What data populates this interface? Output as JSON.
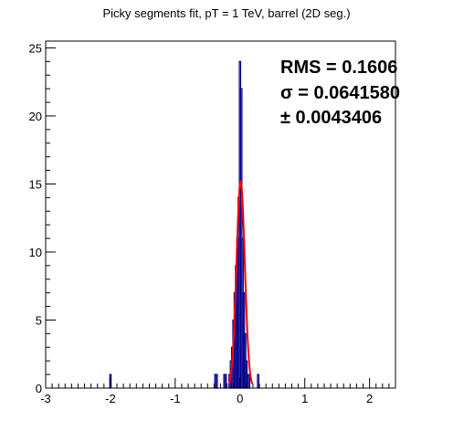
{
  "chart_data": {
    "type": "histogram",
    "title": "Picky segments fit, pT = 1 TeV, barrel (2D seg.)",
    "xlabel": "",
    "ylabel": "",
    "xlim": [
      -3,
      2.4
    ],
    "ylim": [
      0,
      25.5
    ],
    "x_major_ticks": [
      -3,
      -2,
      -1,
      0,
      1,
      2
    ],
    "x_tick_labels": [
      "-3",
      "-2",
      "-1",
      "0",
      "1",
      "2"
    ],
    "y_major_ticks": [
      0,
      5,
      10,
      15,
      20,
      25
    ],
    "y_tick_labels": [
      "0",
      "5",
      "10",
      "15",
      "20",
      "25"
    ],
    "bin_width": 0.02,
    "histogram": {
      "color": "#00008b",
      "bins": [
        {
          "x": -2.0,
          "value": 1
        },
        {
          "x": -0.38,
          "value": 1
        },
        {
          "x": -0.36,
          "value": 1
        },
        {
          "x": -0.24,
          "value": 1
        },
        {
          "x": -0.22,
          "value": 1
        },
        {
          "x": -0.16,
          "value": 1
        },
        {
          "x": -0.14,
          "value": 2
        },
        {
          "x": -0.12,
          "value": 3
        },
        {
          "x": -0.1,
          "value": 5
        },
        {
          "x": -0.08,
          "value": 7
        },
        {
          "x": -0.06,
          "value": 9
        },
        {
          "x": -0.04,
          "value": 11
        },
        {
          "x": -0.02,
          "value": 14
        },
        {
          "x": 0.0,
          "value": 24
        },
        {
          "x": 0.02,
          "value": 22
        },
        {
          "x": 0.04,
          "value": 11
        },
        {
          "x": 0.06,
          "value": 7
        },
        {
          "x": 0.08,
          "value": 4
        },
        {
          "x": 0.1,
          "value": 2
        },
        {
          "x": 0.12,
          "value": 1
        },
        {
          "x": 0.14,
          "value": 1
        },
        {
          "x": 0.28,
          "value": 1
        }
      ]
    },
    "fit": {
      "color": "#ff0000",
      "function": "gaussian",
      "amplitude": 15.2,
      "mean": 0.01,
      "sigma": 0.064158,
      "range": [
        -0.17,
        0.19
      ]
    },
    "stats": {
      "rms_text": "RMS = 0.1606",
      "sigma_text": "σ = 0.0641580",
      "error_text": "± 0.0043406"
    },
    "grid": false,
    "legend": "none"
  }
}
